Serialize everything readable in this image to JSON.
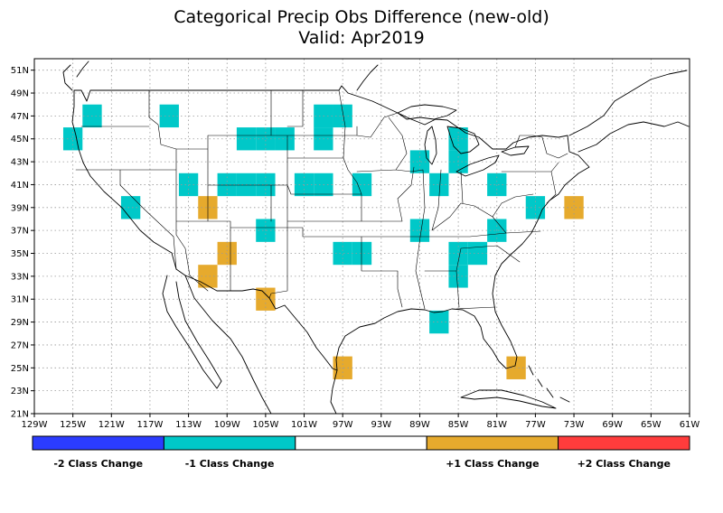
{
  "chart_data": {
    "type": "heatmap",
    "title": "Categorical Precip Obs Difference (new-old)",
    "subtitle": "Valid: Apr2019",
    "xlim": [
      -129,
      -61
    ],
    "ylim": [
      21,
      52
    ],
    "x_ticks": [
      "129W",
      "125W",
      "121W",
      "117W",
      "113W",
      "109W",
      "105W",
      "101W",
      "97W",
      "93W",
      "89W",
      "85W",
      "81W",
      "77W",
      "73W",
      "69W",
      "65W",
      "61W"
    ],
    "y_ticks": [
      "21N",
      "23N",
      "25N",
      "27N",
      "29N",
      "31N",
      "33N",
      "35N",
      "37N",
      "39N",
      "41N",
      "43N",
      "45N",
      "47N",
      "49N",
      "51N"
    ],
    "grid": true,
    "cell_size_deg": 2,
    "colors": {
      "minus2": "#2b3cff",
      "minus1": "#00c8c8",
      "zero": "#ffffff",
      "plus1": "#e6aa2d",
      "plus2": "#ff3c3c"
    },
    "legend": [
      {
        "label": "-2 Class Change",
        "color": "#2b3cff"
      },
      {
        "label": "-1 Class Change",
        "color": "#00c8c8"
      },
      {
        "label": "",
        "color": "#ffffff"
      },
      {
        "label": "+1 Class Change",
        "color": "#e6aa2d"
      },
      {
        "label": "+2 Class Change",
        "color": "#ff3c3c"
      }
    ],
    "cells": [
      {
        "lon": -125,
        "lat": 45,
        "v": -1
      },
      {
        "lon": -123,
        "lat": 47,
        "v": -1
      },
      {
        "lon": -115,
        "lat": 47,
        "v": -1
      },
      {
        "lon": -119,
        "lat": 39,
        "v": -1
      },
      {
        "lon": -113,
        "lat": 41,
        "v": -1
      },
      {
        "lon": -111,
        "lat": 39,
        "v": 1
      },
      {
        "lon": -109,
        "lat": 35,
        "v": 1
      },
      {
        "lon": -111,
        "lat": 33,
        "v": 1
      },
      {
        "lon": -109,
        "lat": 41,
        "v": -1
      },
      {
        "lon": -107,
        "lat": 41,
        "v": -1
      },
      {
        "lon": -105,
        "lat": 41,
        "v": -1
      },
      {
        "lon": -107,
        "lat": 45,
        "v": -1
      },
      {
        "lon": -105,
        "lat": 45,
        "v": -1
      },
      {
        "lon": -103,
        "lat": 45,
        "v": -1
      },
      {
        "lon": -105,
        "lat": 37,
        "v": -1
      },
      {
        "lon": -105,
        "lat": 31,
        "v": 1
      },
      {
        "lon": -101,
        "lat": 41,
        "v": -1
      },
      {
        "lon": -99,
        "lat": 41,
        "v": -1
      },
      {
        "lon": -99,
        "lat": 45,
        "v": -1
      },
      {
        "lon": -99,
        "lat": 47,
        "v": -1
      },
      {
        "lon": -97,
        "lat": 47,
        "v": -1
      },
      {
        "lon": -95,
        "lat": 41,
        "v": -1
      },
      {
        "lon": -97,
        "lat": 35,
        "v": -1
      },
      {
        "lon": -95,
        "lat": 35,
        "v": -1
      },
      {
        "lon": -97,
        "lat": 25,
        "v": 1
      },
      {
        "lon": -89,
        "lat": 43,
        "v": -1
      },
      {
        "lon": -87,
        "lat": 41,
        "v": -1
      },
      {
        "lon": -85,
        "lat": 43,
        "v": -1
      },
      {
        "lon": -85,
        "lat": 45,
        "v": -1
      },
      {
        "lon": -89,
        "lat": 37,
        "v": -1
      },
      {
        "lon": -85,
        "lat": 35,
        "v": -1
      },
      {
        "lon": -83,
        "lat": 35,
        "v": -1
      },
      {
        "lon": -85,
        "lat": 33,
        "v": -1
      },
      {
        "lon": -87,
        "lat": 29,
        "v": -1
      },
      {
        "lon": -81,
        "lat": 41,
        "v": -1
      },
      {
        "lon": -81,
        "lat": 37,
        "v": -1
      },
      {
        "lon": -77,
        "lat": 39,
        "v": -1
      },
      {
        "lon": -73,
        "lat": 39,
        "v": 1
      },
      {
        "lon": -79,
        "lat": 25,
        "v": 1
      }
    ]
  }
}
